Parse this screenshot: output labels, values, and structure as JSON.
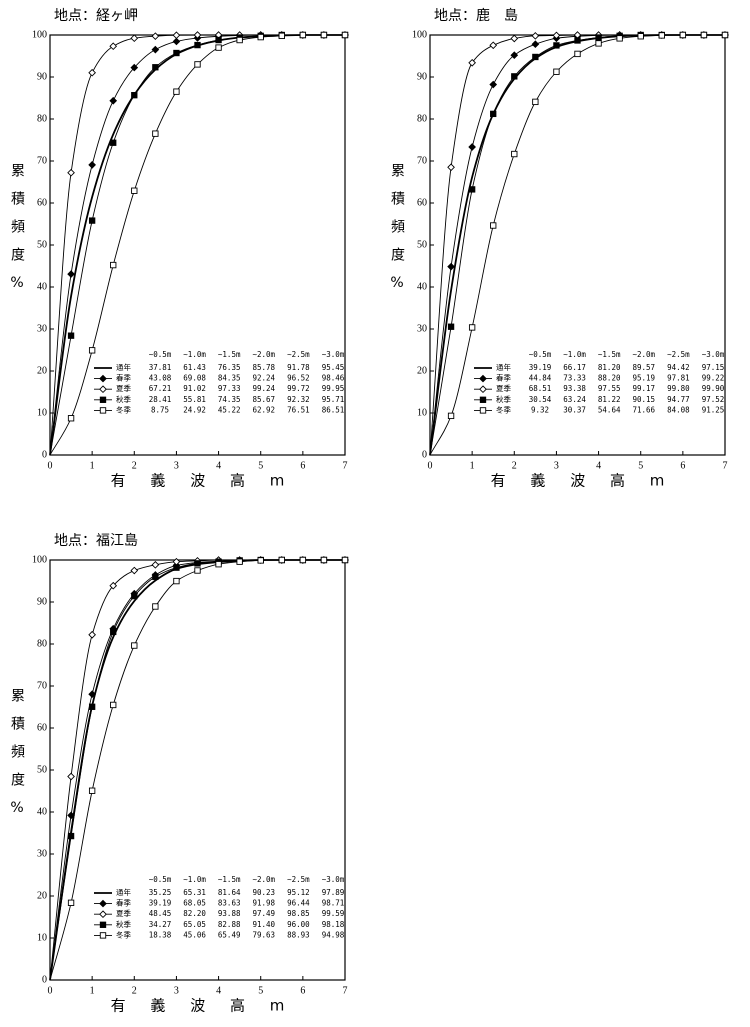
{
  "chart_data": [
    {
      "type": "line",
      "title": "地点：経ヶ岬",
      "x_label": "有 義 波 高 m",
      "y_label": "累積頻度%",
      "x": [
        0,
        0.5,
        1,
        1.5,
        2,
        2.5,
        3,
        3.5,
        4,
        4.5,
        5,
        5.5,
        6,
        6.5,
        7
      ],
      "xlim": [
        0,
        7
      ],
      "xticks": [
        0,
        1,
        2,
        3,
        4,
        5,
        6,
        7
      ],
      "ylim": [
        0,
        100
      ],
      "yticks": [
        0,
        10,
        20,
        30,
        40,
        50,
        60,
        70,
        80,
        90,
        100
      ],
      "grid": false,
      "series": [
        {
          "name": "通年",
          "color": "#000000",
          "marker": "none",
          "values": [
            0,
            37.81,
            61.43,
            76.35,
            85.78,
            91.78,
            95.45,
            97.5,
            98.7,
            99.4,
            99.7,
            99.9,
            100,
            100,
            100
          ]
        },
        {
          "name": "春季",
          "color": "#000000",
          "marker": "diamond",
          "values": [
            0,
            43.08,
            69.08,
            84.35,
            92.24,
            96.52,
            98.46,
            99.3,
            99.7,
            99.9,
            100,
            100,
            100,
            100,
            100
          ]
        },
        {
          "name": "夏季",
          "color": "#000000",
          "marker": "diamond-open",
          "values": [
            0,
            67.21,
            91.02,
            97.33,
            99.24,
            99.72,
            99.95,
            100,
            100,
            100,
            100,
            100,
            100,
            100,
            100
          ]
        },
        {
          "name": "秋季",
          "color": "#000000",
          "marker": "square",
          "values": [
            0,
            28.41,
            55.81,
            74.35,
            85.67,
            92.32,
            95.71,
            97.6,
            98.8,
            99.4,
            99.8,
            100,
            100,
            100,
            100
          ]
        },
        {
          "name": "冬季",
          "color": "#000000",
          "marker": "square-open",
          "values": [
            0,
            8.75,
            24.92,
            45.22,
            62.92,
            76.51,
            86.51,
            93,
            97,
            98.8,
            99.5,
            99.8,
            100,
            100,
            100
          ]
        }
      ],
      "table": {
        "columns": [
          "~0.5m",
          "~1.0m",
          "~1.5m",
          "~2.0m",
          "~2.5m",
          "~3.0m"
        ],
        "rows": [
          [
            "37.81",
            "61.43",
            "76.35",
            "85.78",
            "91.78",
            "95.45"
          ],
          [
            "43.08",
            "69.08",
            "84.35",
            "92.24",
            "96.52",
            "98.46"
          ],
          [
            "67.21",
            "91.02",
            "97.33",
            "99.24",
            "99.72",
            "99.95"
          ],
          [
            "28.41",
            "55.81",
            "74.35",
            "85.67",
            "92.32",
            "95.71"
          ],
          [
            "8.75",
            "24.92",
            "45.22",
            "62.92",
            "76.51",
            "86.51"
          ]
        ]
      }
    },
    {
      "type": "line",
      "title": "地点：鹿　島",
      "x_label": "有 義 波 高 m",
      "y_label": "累積頻度%",
      "x": [
        0,
        0.5,
        1,
        1.5,
        2,
        2.5,
        3,
        3.5,
        4,
        4.5,
        5,
        5.5,
        6,
        6.5,
        7
      ],
      "xlim": [
        0,
        7
      ],
      "xticks": [
        0,
        1,
        2,
        3,
        4,
        5,
        6,
        7
      ],
      "ylim": [
        0,
        100
      ],
      "yticks": [
        0,
        10,
        20,
        30,
        40,
        50,
        60,
        70,
        80,
        90,
        100
      ],
      "grid": false,
      "series": [
        {
          "name": "通年",
          "color": "#000000",
          "marker": "none",
          "values": [
            0,
            39.19,
            66.17,
            81.2,
            89.57,
            94.42,
            97.15,
            98.5,
            99.3,
            99.7,
            99.9,
            100,
            100,
            100,
            100
          ]
        },
        {
          "name": "春季",
          "color": "#000000",
          "marker": "diamond",
          "values": [
            0,
            44.84,
            73.33,
            88.2,
            95.19,
            97.81,
            99.22,
            99.7,
            99.9,
            100,
            100,
            100,
            100,
            100,
            100
          ]
        },
        {
          "name": "夏季",
          "color": "#000000",
          "marker": "diamond-open",
          "values": [
            0,
            68.51,
            93.38,
            97.55,
            99.17,
            99.8,
            99.9,
            100,
            100,
            100,
            100,
            100,
            100,
            100,
            100
          ]
        },
        {
          "name": "秋季",
          "color": "#000000",
          "marker": "square",
          "values": [
            0,
            30.54,
            63.24,
            81.22,
            90.15,
            94.77,
            97.52,
            98.7,
            99.4,
            99.8,
            100,
            100,
            100,
            100,
            100
          ]
        },
        {
          "name": "冬季",
          "color": "#000000",
          "marker": "square-open",
          "values": [
            0,
            9.32,
            30.37,
            54.64,
            71.66,
            84.08,
            91.25,
            95.5,
            98,
            99.2,
            99.7,
            99.9,
            100,
            100,
            100
          ]
        }
      ],
      "table": {
        "columns": [
          "~0.5m",
          "~1.0m",
          "~1.5m",
          "~2.0m",
          "~2.5m",
          "~3.0m"
        ],
        "rows": [
          [
            "39.19",
            "66.17",
            "81.20",
            "89.57",
            "94.42",
            "97.15"
          ],
          [
            "44.84",
            "73.33",
            "88.20",
            "95.19",
            "97.81",
            "99.22"
          ],
          [
            "68.51",
            "93.38",
            "97.55",
            "99.17",
            "99.80",
            "99.90"
          ],
          [
            "30.54",
            "63.24",
            "81.22",
            "90.15",
            "94.77",
            "97.52"
          ],
          [
            "9.32",
            "30.37",
            "54.64",
            "71.66",
            "84.08",
            "91.25"
          ]
        ]
      }
    },
    {
      "type": "line",
      "title": "地点：福江島",
      "x_label": "有 義 波 高 m",
      "y_label": "累積頻度%",
      "x": [
        0,
        0.5,
        1,
        1.5,
        2,
        2.5,
        3,
        3.5,
        4,
        4.5,
        5,
        5.5,
        6,
        6.5,
        7
      ],
      "xlim": [
        0,
        7
      ],
      "xticks": [
        0,
        1,
        2,
        3,
        4,
        5,
        6,
        7
      ],
      "ylim": [
        0,
        100
      ],
      "yticks": [
        0,
        10,
        20,
        30,
        40,
        50,
        60,
        70,
        80,
        90,
        100
      ],
      "grid": false,
      "series": [
        {
          "name": "通年",
          "color": "#000000",
          "marker": "none",
          "values": [
            0,
            35.25,
            65.31,
            81.64,
            90.23,
            95.12,
            97.89,
            99,
            99.5,
            99.8,
            100,
            100,
            100,
            100,
            100
          ]
        },
        {
          "name": "春季",
          "color": "#000000",
          "marker": "diamond",
          "values": [
            0,
            39.19,
            68.05,
            83.63,
            91.98,
            96.44,
            98.71,
            99.4,
            99.7,
            99.9,
            100,
            100,
            100,
            100,
            100
          ]
        },
        {
          "name": "夏季",
          "color": "#000000",
          "marker": "diamond-open",
          "values": [
            0,
            48.45,
            82.2,
            93.88,
            97.49,
            98.85,
            99.59,
            99.8,
            100,
            100,
            100,
            100,
            100,
            100,
            100
          ]
        },
        {
          "name": "秋季",
          "color": "#000000",
          "marker": "square",
          "values": [
            0,
            34.27,
            65.05,
            82.88,
            91.4,
            96,
            98.18,
            99.2,
            99.6,
            99.9,
            100,
            100,
            100,
            100,
            100
          ]
        },
        {
          "name": "冬季",
          "color": "#000000",
          "marker": "square-open",
          "values": [
            0,
            18.38,
            45.06,
            65.49,
            79.63,
            88.93,
            94.98,
            97.5,
            99,
            99.6,
            99.9,
            100,
            100,
            100,
            100
          ]
        }
      ],
      "table": {
        "columns": [
          "~0.5m",
          "~1.0m",
          "~1.5m",
          "~2.0m",
          "~2.5m",
          "~3.0m"
        ],
        "rows": [
          [
            "35.25",
            "65.31",
            "81.64",
            "90.23",
            "95.12",
            "97.89"
          ],
          [
            "39.19",
            "68.05",
            "83.63",
            "91.98",
            "96.44",
            "98.71"
          ],
          [
            "48.45",
            "82.20",
            "93.88",
            "97.49",
            "98.85",
            "99.59"
          ],
          [
            "34.27",
            "65.05",
            "82.88",
            "91.40",
            "96.00",
            "98.18"
          ],
          [
            "18.38",
            "45.06",
            "65.49",
            "79.63",
            "88.93",
            "94.98"
          ]
        ]
      }
    }
  ]
}
